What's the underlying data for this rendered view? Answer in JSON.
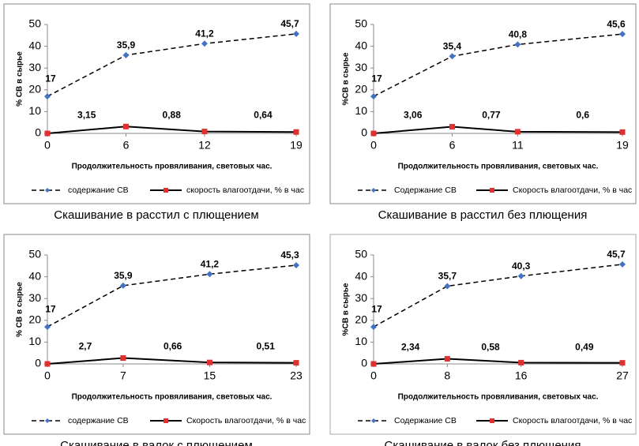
{
  "chart_data": [
    {
      "type": "line",
      "caption": "Скашивание в расстил с плющением",
      "ylabel": "% СВ в сырье",
      "xlabel": "Продолжительность провяливания, световых час.",
      "x": [
        0,
        6,
        12,
        19
      ],
      "xlim": [
        0,
        19
      ],
      "xticks": [
        0,
        6,
        12,
        19
      ],
      "ylim": [
        0,
        50
      ],
      "yticks": [
        0,
        10,
        20,
        30,
        40,
        50
      ],
      "series": [
        {
          "name": "содержание СВ",
          "color": "#4472c4",
          "values": [
            17,
            35.9,
            41.2,
            45.7
          ],
          "value_labels": [
            "17",
            "35,9",
            "41,2",
            "45,7"
          ]
        },
        {
          "name": "скорость влагоотдачи, % в час",
          "color": "#e03030",
          "values": [
            0,
            3.15,
            0.88,
            0.64
          ],
          "value_labels": [
            null,
            "3,15",
            "0,88",
            "0,64"
          ]
        }
      ]
    },
    {
      "type": "line",
      "caption": "Скашивание в расстил без плющения",
      "ylabel": "%СВ в сырье",
      "xlabel": "Продолжительность провяливания, световых час.",
      "x": [
        0,
        6,
        11,
        19
      ],
      "xlim": [
        0,
        19
      ],
      "xticks": [
        0,
        6,
        11,
        19
      ],
      "ylim": [
        0,
        50
      ],
      "yticks": [
        0,
        10,
        20,
        30,
        40,
        50
      ],
      "series": [
        {
          "name": "Содержание СВ",
          "color": "#4472c4",
          "values": [
            17,
            35.4,
            40.8,
            45.6
          ],
          "value_labels": [
            "17",
            "35,4",
            "40,8",
            "45,6"
          ]
        },
        {
          "name": "Скорость влагоотдачи, % в час",
          "color": "#e03030",
          "values": [
            0,
            3.06,
            0.77,
            0.6
          ],
          "value_labels": [
            null,
            "3,06",
            "0,77",
            "0,6"
          ]
        }
      ]
    },
    {
      "type": "line",
      "caption": "Скашивание в валок с плющением",
      "ylabel": "% СВ в сырье",
      "xlabel": "Продолжительность провяливания, световых час.",
      "x": [
        0,
        7,
        15,
        23
      ],
      "xlim": [
        0,
        23
      ],
      "xticks": [
        0,
        7,
        15,
        23
      ],
      "ylim": [
        0,
        50
      ],
      "yticks": [
        0,
        10,
        20,
        30,
        40,
        50
      ],
      "series": [
        {
          "name": "содержание СВ",
          "color": "#4472c4",
          "values": [
            17,
            35.9,
            41.2,
            45.3
          ],
          "value_labels": [
            "17",
            "35,9",
            "41,2",
            "45,3"
          ]
        },
        {
          "name": "Скорость влагоотдачи, % в час",
          "color": "#e03030",
          "values": [
            0,
            2.7,
            0.66,
            0.51
          ],
          "value_labels": [
            null,
            "2,7",
            "0,66",
            "0,51"
          ]
        }
      ]
    },
    {
      "type": "line",
      "caption": "Скашивание в валок без плющения",
      "ylabel": "%СВ в сырье",
      "xlabel": "Продолжительность провяливания, световых час.",
      "x": [
        0,
        8,
        16,
        27
      ],
      "xlim": [
        0,
        27
      ],
      "xticks": [
        0,
        8,
        16,
        27
      ],
      "ylim": [
        0,
        50
      ],
      "yticks": [
        0,
        10,
        20,
        30,
        40,
        50
      ],
      "series": [
        {
          "name": "Содержание СВ",
          "color": "#4472c4",
          "values": [
            17,
            35.7,
            40.3,
            45.7
          ],
          "value_labels": [
            "17",
            "35,7",
            "40,3",
            "45,7"
          ]
        },
        {
          "name": "Скорость влагоотдачи, % в час",
          "color": "#e03030",
          "values": [
            0,
            2.34,
            0.58,
            0.49
          ],
          "value_labels": [
            null,
            "2,34",
            "0,58",
            "0,49"
          ]
        }
      ]
    }
  ]
}
